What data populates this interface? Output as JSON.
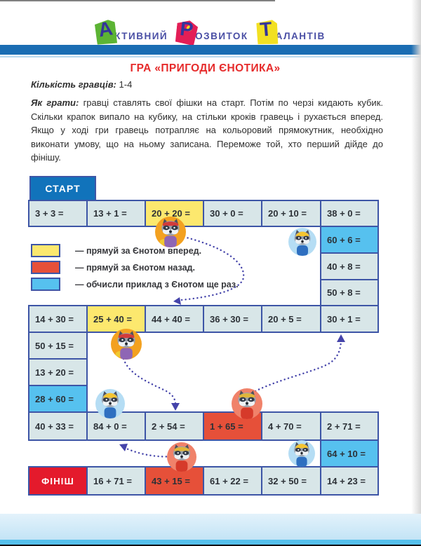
{
  "page": {
    "header": {
      "logo_words": [
        {
          "initial": "А",
          "rest": "ктивний",
          "tile_color": "#5cb434"
        },
        {
          "initial": "Р",
          "rest": "озвиток",
          "tile_color": "#e31e56"
        },
        {
          "initial": "Т",
          "rest": "алантів",
          "tile_color": "#f2e022"
        }
      ]
    },
    "title": "ГРА «ПРИГОДИ ЄНОТИКА»",
    "players_label": "Кількість гравців:",
    "players_value": "1-4",
    "how_to_play_label": "Як грати:",
    "how_to_play_text": "гравці ставлять свої фішки на старт. Потім по черзі кидають кубик. Скільки крапок випало на кубику, на стільки кроків гравець і рухається вперед. Якщо у ході гри гравець потрапляє на кольоровий прямокутник, необхідно виконати умову, що на ньому записана. Переможе той, хто перший дійде до фінішу."
  },
  "legend": {
    "items": [
      {
        "swatch_class": "swatch yellow",
        "text": "— прямуй за Єнотом вперед."
      },
      {
        "swatch_class": "swatch red",
        "text": "— прямуй за Єнотом назад."
      },
      {
        "swatch_class": "swatch blue",
        "text": "— обчисли приклад з Єнотом ще раз."
      }
    ]
  },
  "board": {
    "start_label": "СТАРТ",
    "finish_label": "ФІНІШ",
    "rows": [
      {
        "name": "row-1",
        "cells": [
          {
            "text": "3 + 3 =",
            "variant": "plain"
          },
          {
            "text": "13 + 1 =",
            "variant": "plain"
          },
          {
            "text": "20 + 20 =",
            "variant": "yellow"
          },
          {
            "text": "30 + 0 =",
            "variant": "plain"
          },
          {
            "text": "20 + 10 =",
            "variant": "plain"
          },
          {
            "text": "38 + 0 =",
            "variant": "plain"
          }
        ]
      },
      {
        "name": "right-column-top",
        "cells": [
          {
            "text": "60 + 6 =",
            "variant": "blue"
          },
          {
            "text": "40 + 8 =",
            "variant": "plain"
          },
          {
            "text": "50 + 8 =",
            "variant": "plain"
          }
        ]
      },
      {
        "name": "row-2",
        "cells": [
          {
            "text": "14 + 30 =",
            "variant": "plain"
          },
          {
            "text": "25 + 40 =",
            "variant": "yellow"
          },
          {
            "text": "44 + 40 =",
            "variant": "plain"
          },
          {
            "text": "36 + 30 =",
            "variant": "plain"
          },
          {
            "text": "20 + 5 =",
            "variant": "plain"
          },
          {
            "text": "30 + 1 =",
            "variant": "plain"
          }
        ]
      },
      {
        "name": "left-column",
        "cells": [
          {
            "text": "50 + 15 =",
            "variant": "plain"
          },
          {
            "text": "13 + 20 =",
            "variant": "plain"
          },
          {
            "text": "28 + 60 =",
            "variant": "blue"
          }
        ]
      },
      {
        "name": "row-3",
        "cells": [
          {
            "text": "40 + 33 =",
            "variant": "plain"
          },
          {
            "text": "84 + 0 =",
            "variant": "plain"
          },
          {
            "text": "2 + 54 =",
            "variant": "plain"
          },
          {
            "text": "1 + 65 =",
            "variant": "red"
          },
          {
            "text": "4 + 70 =",
            "variant": "plain"
          },
          {
            "text": "2 + 71 =",
            "variant": "plain"
          }
        ]
      },
      {
        "name": "right-column-bottom",
        "cells": [
          {
            "text": "64 + 10 =",
            "variant": "blue"
          }
        ]
      },
      {
        "name": "finish-row",
        "cells": [
          {
            "text": "ФІНІШ",
            "variant": "finish"
          },
          {
            "text": "16 + 71 =",
            "variant": "plain"
          },
          {
            "text": "43 + 15 =",
            "variant": "red"
          },
          {
            "text": "61 + 22 =",
            "variant": "plain"
          },
          {
            "text": "32 + 50 =",
            "variant": "plain"
          },
          {
            "text": "14 + 23 =",
            "variant": "plain"
          }
        ]
      }
    ],
    "markers": [
      {
        "character": "raccoon",
        "variant": "forward"
      },
      {
        "character": "raccoon",
        "variant": "again"
      },
      {
        "character": "raccoon",
        "variant": "forward"
      },
      {
        "character": "raccoon",
        "variant": "again"
      },
      {
        "character": "raccoon",
        "variant": "back"
      },
      {
        "character": "raccoon",
        "variant": "again"
      },
      {
        "character": "raccoon",
        "variant": "back"
      }
    ]
  },
  "colors": {
    "header_bar": "#1a6db3",
    "title_red": "#e62b2b",
    "cell_plain": "#d8e6e8",
    "cell_yellow": "#fce86e",
    "cell_red": "#e65039",
    "cell_blue": "#56c1ef",
    "finish_red": "#e41a2c",
    "start_blue": "#1173bb",
    "grid_border": "#3d55a6",
    "arrow_blue": "#4544aa",
    "footer_band": "#c3e4f6",
    "footer_stripe": "#55bfeb"
  }
}
